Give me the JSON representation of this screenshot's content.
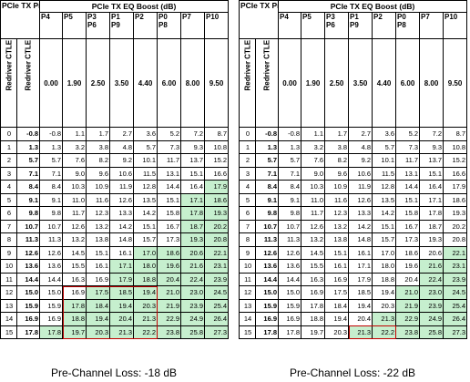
{
  "header": {
    "presets_label": "PCIe TX Presets",
    "eq_boost_label": "PCIe TX EQ Boost (dB)",
    "presets": [
      "P4",
      "P5",
      "P3\nP6",
      "P1\nP9",
      "P2",
      "P0\nP8",
      "P7",
      "P10"
    ],
    "index_label": "Redriver CTLE Index",
    "ctle_label": "Redriver CTLE Boost (dB)",
    "boost_values": [
      "0.00",
      "1.90",
      "2.50",
      "3.50",
      "4.40",
      "6.00",
      "8.00",
      "9.50"
    ]
  },
  "colors": {
    "highlight_fill": "#c6efce",
    "box_border": "#c00000"
  },
  "panels": [
    {
      "caption": "Pre-Channel Loss: -18 dB",
      "rows": [
        {
          "index": "0",
          "ctle": "-0.8",
          "cells": [
            "-0.8",
            "1.1",
            "1.7",
            "2.7",
            "3.6",
            "5.2",
            "7.2",
            "8.7"
          ],
          "green": []
        },
        {
          "index": "1",
          "ctle": "1.3",
          "cells": [
            "1.3",
            "3.2",
            "3.8",
            "4.8",
            "5.7",
            "7.3",
            "9.3",
            "10.8"
          ],
          "green": []
        },
        {
          "index": "2",
          "ctle": "5.7",
          "cells": [
            "5.7",
            "7.6",
            "8.2",
            "9.2",
            "10.1",
            "11.7",
            "13.7",
            "15.2"
          ],
          "green": []
        },
        {
          "index": "3",
          "ctle": "7.1",
          "cells": [
            "7.1",
            "9.0",
            "9.6",
            "10.6",
            "11.5",
            "13.1",
            "15.1",
            "16.6"
          ],
          "green": []
        },
        {
          "index": "4",
          "ctle": "8.4",
          "cells": [
            "8.4",
            "10.3",
            "10.9",
            "11.9",
            "12.8",
            "14.4",
            "16.4",
            "17.9"
          ],
          "green": [
            7
          ]
        },
        {
          "index": "5",
          "ctle": "9.1",
          "cells": [
            "9.1",
            "11.0",
            "11.6",
            "12.6",
            "13.5",
            "15.1",
            "17.1",
            "18.6"
          ],
          "green": [
            6,
            7
          ]
        },
        {
          "index": "6",
          "ctle": "9.8",
          "cells": [
            "9.8",
            "11.7",
            "12.3",
            "13.3",
            "14.2",
            "15.8",
            "17.8",
            "19.3"
          ],
          "green": [
            6,
            7
          ]
        },
        {
          "index": "7",
          "ctle": "10.7",
          "cells": [
            "10.7",
            "12.6",
            "13.2",
            "14.2",
            "15.1",
            "16.7",
            "18.7",
            "20.2"
          ],
          "green": [
            6,
            7
          ]
        },
        {
          "index": "8",
          "ctle": "11.3",
          "cells": [
            "11.3",
            "13.2",
            "13.8",
            "14.8",
            "15.7",
            "17.3",
            "19.3",
            "20.8"
          ],
          "green": [
            6,
            7
          ]
        },
        {
          "index": "9",
          "ctle": "12.6",
          "cells": [
            "12.6",
            "14.5",
            "15.1",
            "16.1",
            "17.0",
            "18.6",
            "20.6",
            "22.1"
          ],
          "green": [
            4,
            5,
            6,
            7
          ]
        },
        {
          "index": "10",
          "ctle": "13.6",
          "cells": [
            "13.6",
            "15.5",
            "16.1",
            "17.1",
            "18.0",
            "19.6",
            "21.6",
            "23.1"
          ],
          "green": [
            3,
            4,
            5,
            6,
            7
          ]
        },
        {
          "index": "11",
          "ctle": "14.4",
          "cells": [
            "14.4",
            "16.3",
            "16.9",
            "17.9",
            "18.8",
            "20.4",
            "22.4",
            "23.9"
          ],
          "green": [
            3,
            4,
            5,
            6,
            7
          ]
        },
        {
          "index": "12",
          "ctle": "15.0",
          "cells": [
            "15.0",
            "16.9",
            "17.5",
            "18.5",
            "19.4",
            "21.0",
            "23.0",
            "24.5"
          ],
          "green": [
            2,
            3,
            4,
            5,
            6,
            7
          ]
        },
        {
          "index": "13",
          "ctle": "15.9",
          "cells": [
            "15.9",
            "17.8",
            "18.4",
            "19.4",
            "20.3",
            "21.9",
            "23.9",
            "25.4"
          ],
          "green": [
            1,
            2,
            3,
            4,
            5,
            6,
            7
          ]
        },
        {
          "index": "14",
          "ctle": "16.9",
          "cells": [
            "16.9",
            "18.8",
            "19.4",
            "20.4",
            "21.3",
            "22.9",
            "24.9",
            "26.4"
          ],
          "green": [
            1,
            2,
            3,
            4,
            5,
            6,
            7
          ]
        },
        {
          "index": "15",
          "ctle": "17.8",
          "cells": [
            "17.8",
            "19.7",
            "20.3",
            "21.3",
            "22.2",
            "23.8",
            "25.8",
            "27.3"
          ],
          "green": [
            0,
            1,
            2,
            3,
            4,
            5,
            6,
            7
          ]
        }
      ],
      "box": {
        "r0": 12,
        "r1": 15,
        "c0": 1,
        "c1": 4
      }
    },
    {
      "caption": "Pre-Channel Loss: -22 dB",
      "rows": [
        {
          "index": "0",
          "ctle": "-0.8",
          "cells": [
            "-0.8",
            "1.1",
            "1.7",
            "2.7",
            "3.6",
            "5.2",
            "7.2",
            "8.7"
          ],
          "green": []
        },
        {
          "index": "1",
          "ctle": "1.3",
          "cells": [
            "1.3",
            "3.2",
            "3.8",
            "4.8",
            "5.7",
            "7.3",
            "9.3",
            "10.8"
          ],
          "green": []
        },
        {
          "index": "2",
          "ctle": "5.7",
          "cells": [
            "5.7",
            "7.6",
            "8.2",
            "9.2",
            "10.1",
            "11.7",
            "13.7",
            "15.2"
          ],
          "green": []
        },
        {
          "index": "3",
          "ctle": "7.1",
          "cells": [
            "7.1",
            "9.0",
            "9.6",
            "10.6",
            "11.5",
            "13.1",
            "15.1",
            "16.6"
          ],
          "green": []
        },
        {
          "index": "4",
          "ctle": "8.4",
          "cells": [
            "8.4",
            "10.3",
            "10.9",
            "11.9",
            "12.8",
            "14.4",
            "16.4",
            "17.9"
          ],
          "green": []
        },
        {
          "index": "5",
          "ctle": "9.1",
          "cells": [
            "9.1",
            "11.0",
            "11.6",
            "12.6",
            "13.5",
            "15.1",
            "17.1",
            "18.6"
          ],
          "green": []
        },
        {
          "index": "6",
          "ctle": "9.8",
          "cells": [
            "9.8",
            "11.7",
            "12.3",
            "13.3",
            "14.2",
            "15.8",
            "17.8",
            "19.3"
          ],
          "green": []
        },
        {
          "index": "7",
          "ctle": "10.7",
          "cells": [
            "10.7",
            "12.6",
            "13.2",
            "14.2",
            "15.1",
            "16.7",
            "18.7",
            "20.2"
          ],
          "green": []
        },
        {
          "index": "8",
          "ctle": "11.3",
          "cells": [
            "11.3",
            "13.2",
            "13.8",
            "14.8",
            "15.7",
            "17.3",
            "19.3",
            "20.8"
          ],
          "green": []
        },
        {
          "index": "9",
          "ctle": "12.6",
          "cells": [
            "12.6",
            "14.5",
            "15.1",
            "16.1",
            "17.0",
            "18.6",
            "20.6",
            "22.1"
          ],
          "green": [
            7
          ]
        },
        {
          "index": "10",
          "ctle": "13.6",
          "cells": [
            "13.6",
            "15.5",
            "16.1",
            "17.1",
            "18.0",
            "19.6",
            "21.6",
            "23.1"
          ],
          "green": [
            6,
            7
          ]
        },
        {
          "index": "11",
          "ctle": "14.4",
          "cells": [
            "14.4",
            "16.3",
            "16.9",
            "17.9",
            "18.8",
            "20.4",
            "22.4",
            "23.9"
          ],
          "green": [
            6,
            7
          ]
        },
        {
          "index": "12",
          "ctle": "15.0",
          "cells": [
            "15.0",
            "16.9",
            "17.5",
            "18.5",
            "19.4",
            "21.0",
            "23.0",
            "24.5"
          ],
          "green": [
            5,
            6,
            7
          ]
        },
        {
          "index": "13",
          "ctle": "15.9",
          "cells": [
            "15.9",
            "17.8",
            "18.4",
            "19.4",
            "20.3",
            "21.9",
            "23.9",
            "25.4"
          ],
          "green": [
            5,
            6,
            7
          ]
        },
        {
          "index": "14",
          "ctle": "16.9",
          "cells": [
            "16.9",
            "18.8",
            "19.4",
            "20.4",
            "21.3",
            "22.9",
            "24.9",
            "26.4"
          ],
          "green": [
            4,
            5,
            6,
            7
          ]
        },
        {
          "index": "15",
          "ctle": "17.8",
          "cells": [
            "17.8",
            "19.7",
            "20.3",
            "21.3",
            "22.2",
            "23.8",
            "25.8",
            "27.3"
          ],
          "green": [
            3,
            4,
            5,
            6,
            7
          ]
        }
      ],
      "box": {
        "r0": 15,
        "r1": 15,
        "c0": 3,
        "c1": 4
      }
    }
  ]
}
